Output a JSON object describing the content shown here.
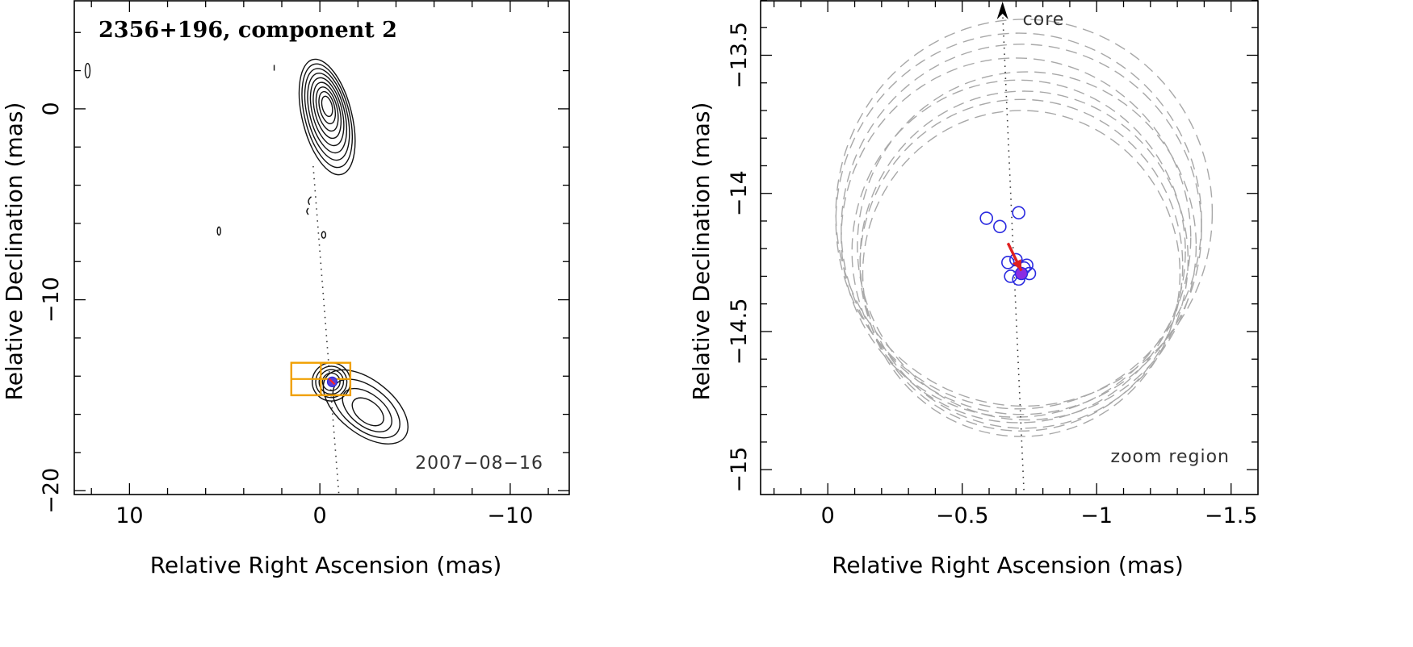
{
  "chart_data": [
    {
      "type": "scatter",
      "panel": "left",
      "title": "2356+196, component 2",
      "xlabel": "Relative Right Ascension (mas)",
      "ylabel": "Relative Declination (mas)",
      "xlim": [
        12.9,
        -13.1
      ],
      "ylim": [
        -20.2,
        5.7
      ],
      "xticks": [
        10,
        0,
        -10
      ],
      "xtick_labels": [
        "10",
        "0",
        "−10"
      ],
      "yticks": [
        0,
        -10,
        -20
      ],
      "ytick_labels": [
        "0",
        "−10",
        "−20"
      ],
      "annotation": "2007−08−16",
      "jet_path": {
        "from": [
          0.35,
          -3.0
        ],
        "to": [
          -1.0,
          -20.2
        ]
      },
      "contour_centers": [
        {
          "name": "core",
          "x": -0.3,
          "y": -0.1
        },
        {
          "name": "component",
          "x": -0.6,
          "y": -14.3
        },
        {
          "name": "extended",
          "x": -2.5,
          "y": -15.9
        }
      ],
      "component_marker": {
        "x": -0.65,
        "y": -14.3
      },
      "zoom_box": {
        "x": [
          1.5,
          -1.6
        ],
        "y": [
          -13.3,
          -15.0
        ]
      },
      "colors": {
        "box": "#f0a000",
        "marker_fill": "#5a3fd6",
        "marker_edge": "#ff2020"
      }
    },
    {
      "type": "scatter",
      "panel": "right",
      "xlabel": "Relative Right Ascension (mas)",
      "ylabel": "Relative Declination (mas)",
      "xlim": [
        0.25,
        -1.6
      ],
      "ylim": [
        -15.09,
        -13.3
      ],
      "xticks": [
        0,
        -0.5,
        -1,
        -1.5
      ],
      "xtick_labels": [
        "0",
        "−0.5",
        "−1",
        "−1.5"
      ],
      "yticks": [
        -13.5,
        -14,
        -14.5,
        -15
      ],
      "ytick_labels": [
        "−13.5",
        "−14",
        "−14.5",
        "−15"
      ],
      "core_label": "core",
      "zoom_label": "zoom region",
      "jet_line": {
        "from": [
          -0.65,
          -13.3
        ],
        "to": [
          -0.73,
          -15.09
        ]
      },
      "observations": [
        {
          "x": -0.59,
          "y": -14.09
        },
        {
          "x": -0.64,
          "y": -14.12
        },
        {
          "x": -0.71,
          "y": -14.07
        },
        {
          "x": -0.67,
          "y": -14.25
        },
        {
          "x": -0.7,
          "y": -14.24
        },
        {
          "x": -0.73,
          "y": -14.27
        },
        {
          "x": -0.68,
          "y": -14.3
        },
        {
          "x": -0.75,
          "y": -14.29
        },
        {
          "x": -0.71,
          "y": -14.31
        },
        {
          "x": -0.74,
          "y": -14.26
        }
      ],
      "mean_position": {
        "x": -0.72,
        "y": -14.29
      },
      "motion_vector": {
        "from": [
          -0.67,
          -14.18
        ],
        "to": [
          -0.72,
          -14.28
        ]
      },
      "uncertainty_rings": [
        {
          "cx": -0.73,
          "cy": -14.07,
          "r": 0.7
        },
        {
          "cx": -0.71,
          "cy": -14.1,
          "r": 0.68
        },
        {
          "cx": -0.72,
          "cy": -14.13,
          "r": 0.67
        },
        {
          "cx": -0.7,
          "cy": -14.16,
          "r": 0.65
        },
        {
          "cx": -0.74,
          "cy": -14.19,
          "r": 0.63
        },
        {
          "cx": -0.71,
          "cy": -14.21,
          "r": 0.62
        },
        {
          "cx": -0.73,
          "cy": -14.24,
          "r": 0.61
        },
        {
          "cx": -0.72,
          "cy": -14.26,
          "r": 0.6
        },
        {
          "cx": -0.72,
          "cy": -14.29,
          "r": 0.59
        }
      ],
      "colors": {
        "ring": "#a8a8a8",
        "circle": "#2a2ae0",
        "mean": "#8a2be2",
        "arrow": "#e02020"
      }
    }
  ]
}
